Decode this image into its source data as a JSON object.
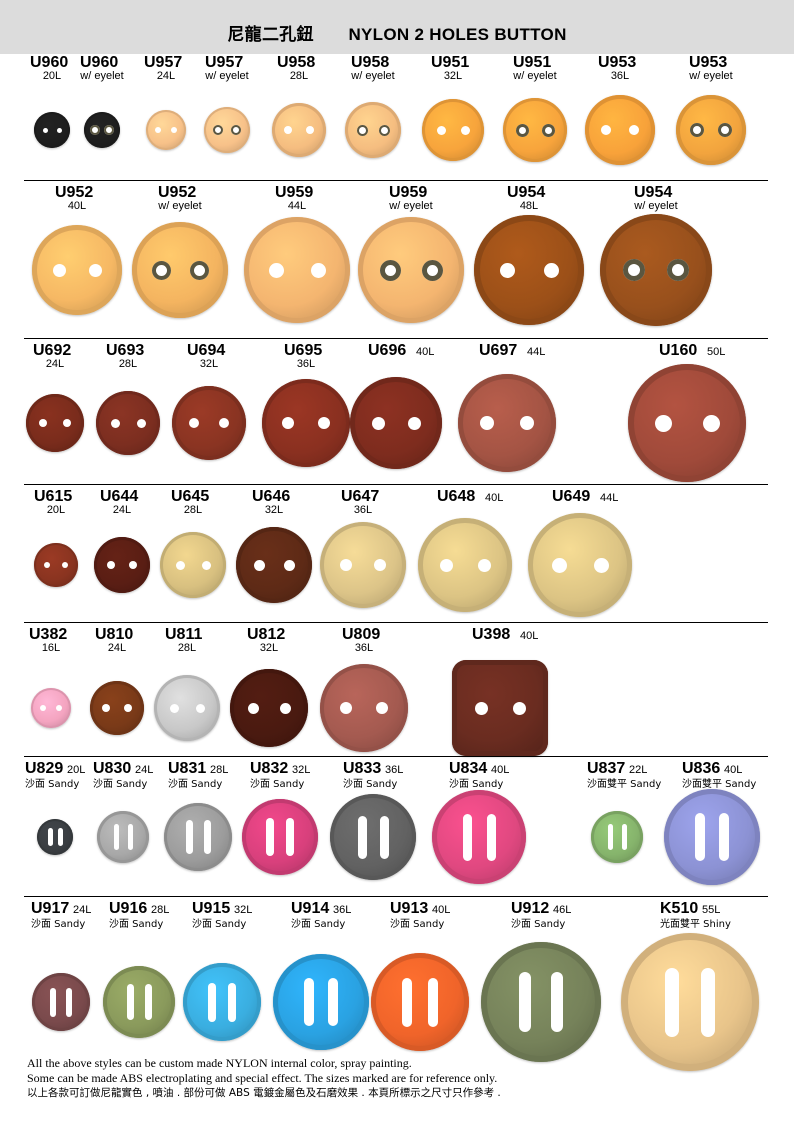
{
  "header": {
    "title": "尼龍二孔鈕　　NYLON 2 HOLES BUTTON"
  },
  "rows": [
    {
      "items": [
        {
          "code": "U960",
          "size": "20L",
          "color": "#1e1e1e",
          "type": "2h"
        },
        {
          "code": "U960",
          "size": "w/ eyelet",
          "color": "#1e1e1e",
          "type": "2e"
        },
        {
          "code": "U957",
          "size": "24L",
          "color": "#f7c189",
          "type": "2h"
        },
        {
          "code": "U957",
          "size": "w/ eyelet",
          "color": "#f7c189",
          "type": "2e"
        },
        {
          "code": "U958",
          "size": "28L",
          "color": "#f5bd80",
          "type": "2h"
        },
        {
          "code": "U958",
          "size": "w/ eyelet",
          "color": "#f5bd80",
          "type": "2e"
        },
        {
          "code": "U951",
          "size": "32L",
          "color": "#f7a43c",
          "type": "2h"
        },
        {
          "code": "U951",
          "size": "w/ eyelet",
          "color": "#f7a43c",
          "type": "2e"
        },
        {
          "code": "U953",
          "size": "36L",
          "color": "#f8a23a",
          "type": "2h"
        },
        {
          "code": "U953",
          "size": "w/ eyelet",
          "color": "#f2a43e",
          "type": "2e"
        }
      ]
    },
    {
      "items": [
        {
          "code": "U952",
          "size": "40L",
          "color": "#f6b864",
          "type": "2h"
        },
        {
          "code": "U952",
          "size": "w/ eyelet",
          "color": "#f4b460",
          "type": "2e"
        },
        {
          "code": "U959",
          "size": "44L",
          "color": "#f4b570",
          "type": "2h"
        },
        {
          "code": "U959",
          "size": "w/ eyelet",
          "color": "#f4b570",
          "type": "2e"
        },
        {
          "code": "U954",
          "size": "48L",
          "color": "#9c5018",
          "type": "2h"
        },
        {
          "code": "U954",
          "size": "w/ eyelet",
          "color": "#98501c",
          "type": "2e"
        }
      ]
    },
    {
      "items": [
        {
          "code": "U692",
          "size": "24L",
          "color": "#7a2c1c",
          "type": "2h"
        },
        {
          "code": "U693",
          "size": "28L",
          "color": "#7c2e20",
          "type": "2h"
        },
        {
          "code": "U694",
          "size": "32L",
          "color": "#8a3422",
          "type": "2h"
        },
        {
          "code": "U695",
          "size": "36L",
          "color": "#8a3020",
          "type": "2h"
        },
        {
          "code": "U696",
          "size": "40L",
          "color": "#7e2c1e",
          "type": "2h"
        },
        {
          "code": "U697",
          "size": "44L",
          "color": "#a45444",
          "type": "2h"
        },
        {
          "code": "U160",
          "size": "50L",
          "color": "#a04a3a",
          "type": "2h"
        }
      ]
    },
    {
      "items": [
        {
          "code": "U615",
          "size": "20L",
          "color": "#8a3420",
          "type": "2h"
        },
        {
          "code": "U644",
          "size": "24L",
          "color": "#5a1e14",
          "type": "2h"
        },
        {
          "code": "U645",
          "size": "28L",
          "color": "#d8c080",
          "type": "2h"
        },
        {
          "code": "U646",
          "size": "32L",
          "color": "#5e2a16",
          "type": "2h"
        },
        {
          "code": "U647",
          "size": "36L",
          "color": "#dcc488",
          "type": "2h"
        },
        {
          "code": "U648",
          "size": "40L",
          "color": "#dcc484",
          "type": "2h"
        },
        {
          "code": "U649",
          "size": "44L",
          "color": "#dcc484",
          "type": "2h"
        }
      ]
    },
    {
      "items": [
        {
          "code": "U382",
          "size": "16L",
          "color": "#f4a4c0",
          "type": "2h"
        },
        {
          "code": "U810",
          "size": "24L",
          "color": "#7a3a18",
          "type": "2h"
        },
        {
          "code": "U811",
          "size": "28L",
          "color": "#c8c8c8",
          "type": "2h"
        },
        {
          "code": "U812",
          "size": "32L",
          "color": "#4a1a10",
          "type": "2h"
        },
        {
          "code": "U809",
          "size": "36L",
          "color": "#a45a50",
          "type": "2h"
        },
        {
          "code": "U398",
          "size": "40L",
          "color": "#6a2c20",
          "type": "sq"
        }
      ]
    },
    {
      "items": [
        {
          "code": "U829",
          "size": "20L",
          "note": "沙面 Sandy",
          "color": "#3a3e42",
          "type": "slot"
        },
        {
          "code": "U830",
          "size": "24L",
          "note": "沙面 Sandy",
          "color": "#a8a8a8",
          "type": "slot"
        },
        {
          "code": "U831",
          "size": "28L",
          "note": "沙面 Sandy",
          "color": "#9c9c9c",
          "type": "slot"
        },
        {
          "code": "U832",
          "size": "32L",
          "note": "沙面 Sandy",
          "color": "#d8407c",
          "type": "slot"
        },
        {
          "code": "U833",
          "size": "36L",
          "note": "沙面 Sandy",
          "color": "#626262",
          "type": "slot"
        },
        {
          "code": "U834",
          "size": "40L",
          "note": "沙面 Sandy",
          "color": "#e04880",
          "type": "slot"
        },
        {
          "code": "U837",
          "size": "22L",
          "note": "沙面雙平 Sandy",
          "color": "#86b46c",
          "type": "slot"
        },
        {
          "code": "U836",
          "size": "40L",
          "note": "沙面雙平 Sandy",
          "color": "#8c92d4",
          "type": "slot"
        }
      ]
    },
    {
      "items": [
        {
          "code": "U917",
          "size": "24L",
          "note": "沙面 Sandy",
          "color": "#7a4a4c",
          "type": "slot"
        },
        {
          "code": "U916",
          "size": "28L",
          "note": "沙面 Sandy",
          "color": "#8a9a5c",
          "type": "slot"
        },
        {
          "code": "U915",
          "size": "32L",
          "note": "沙面 Sandy",
          "color": "#3aaee0",
          "type": "slot"
        },
        {
          "code": "U914",
          "size": "36L",
          "note": "沙面 Sandy",
          "color": "#2aa2e2",
          "type": "slot"
        },
        {
          "code": "U913",
          "size": "40L",
          "note": "沙面 Sandy",
          "color": "#f0642a",
          "type": "slot"
        },
        {
          "code": "U912",
          "size": "46L",
          "note": "沙面 Sandy",
          "color": "#76825a",
          "type": "slot"
        },
        {
          "code": "K510",
          "size": "55L",
          "note": "光面雙平 Shiny",
          "color": "#e8c48a",
          "type": "slot"
        }
      ]
    }
  ],
  "footer": {
    "line1": "All the above styles can be custom made NYLON internal color, spray painting.",
    "line2": "Some can be made ABS electroplating and special effect.  The sizes marked are for reference only.",
    "line3": "以上各款可訂做尼龍實色 , 噴油 . 部份可做 ABS 電鍍金屬色及石磨效果 . 本頁所標示之尺寸只作參考 ."
  }
}
